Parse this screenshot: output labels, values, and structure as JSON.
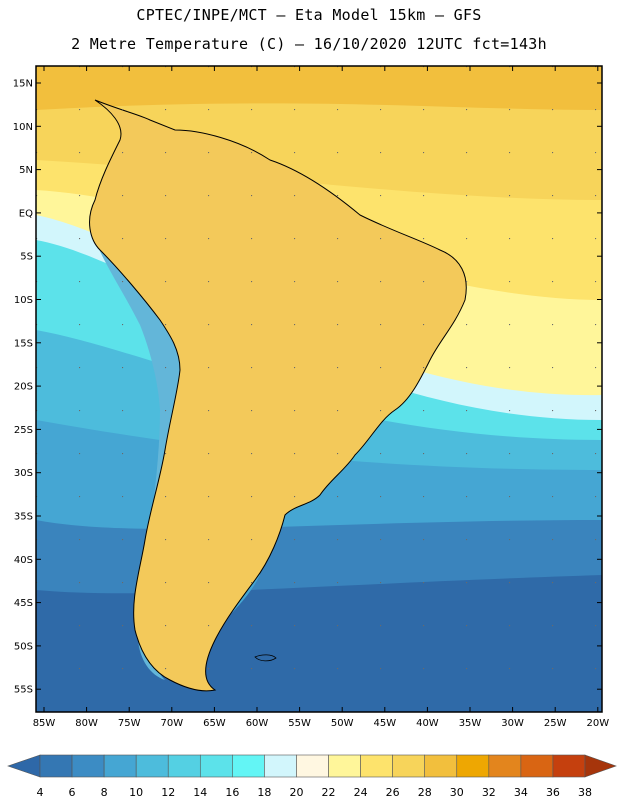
{
  "title_line1": "CPTEC/INPE/MCT –  Eta Model 15km – GFS",
  "title_line2": "2 Metre Temperature (C) – 16/10/2020 12UTC fct=143h",
  "lat_labels": [
    "15N",
    "10N",
    "5N",
    "EQ",
    "5S",
    "10S",
    "15S",
    "20S",
    "25S",
    "30S",
    "35S",
    "40S",
    "45S",
    "50S",
    "55S"
  ],
  "lon_labels": [
    "85W",
    "80W",
    "75W",
    "70W",
    "65W",
    "60W",
    "55W",
    "50W",
    "45W",
    "40W",
    "35W",
    "30W",
    "25W",
    "20W"
  ],
  "colorbar": {
    "ticks": [
      "4",
      "6",
      "8",
      "10",
      "12",
      "14",
      "16",
      "18",
      "20",
      "22",
      "24",
      "26",
      "28",
      "30",
      "32",
      "34",
      "36",
      "38"
    ],
    "colors": [
      "#2e68a8",
      "#3477b3",
      "#3c8cc4",
      "#45a6d3",
      "#4dbcdc",
      "#54d0e3",
      "#5ce2ea",
      "#63f5f5",
      "#d2f6fc",
      "#fff7e1",
      "#fff69a",
      "#fde36c",
      "#f7d45a",
      "#f2bf3d",
      "#eea702",
      "#e3851d",
      "#d96513",
      "#c5400e",
      "#a6350b"
    ]
  },
  "legend_colors": {
    "ocean_south": "#2f6aa8",
    "ocean_mid": "#3f90c4",
    "ocean_cool": "#55c6e2",
    "ocean_warm": "#f3cf5f",
    "land_hot": "#f1b247",
    "andes": "#63b6d9"
  }
}
